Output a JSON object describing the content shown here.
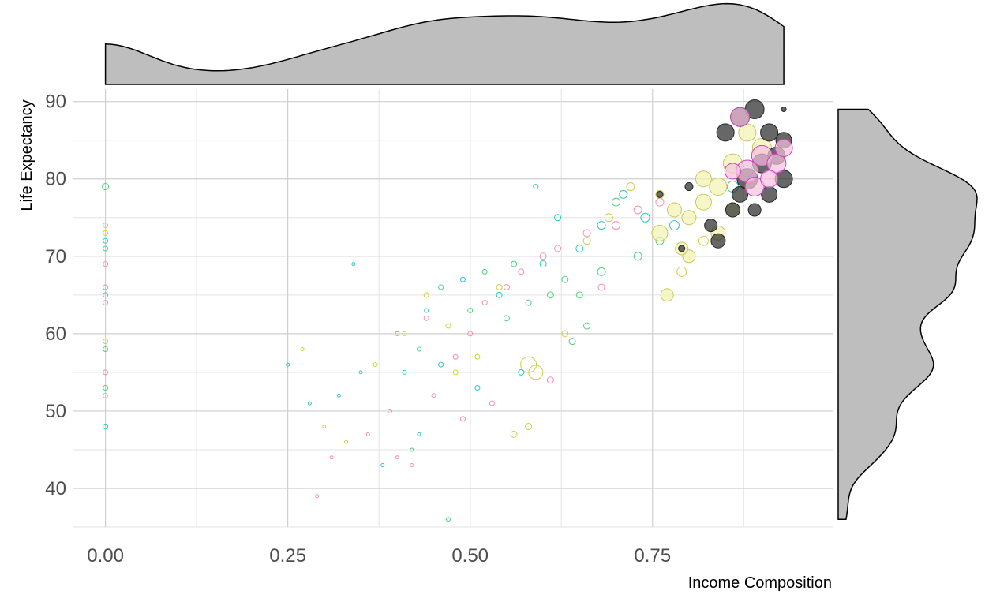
{
  "chart_data": {
    "type": "scatter",
    "xlabel": "Income Composition",
    "ylabel": "Life Expectancy",
    "xlim": [
      -0.045,
      0.997
    ],
    "ylim": [
      35,
      91.6
    ],
    "xticks": [
      {
        "value": 0,
        "label": "0.00"
      },
      0.25,
      {
        "value": 0.5,
        "label": "0.50"
      },
      0.75
    ],
    "yticks": [
      40,
      50,
      60,
      70,
      80,
      90
    ],
    "x_minor_grid": [
      0.125,
      0.375,
      0.625,
      0.875
    ],
    "y_minor_grid": [
      35,
      45,
      55,
      65,
      75,
      85
    ],
    "grid": true,
    "marginal": "density",
    "marginal_fill": "#bebebe",
    "series": [
      {
        "color": "#f48fb1",
        "fill": "none",
        "x": [
          0,
          0,
          0,
          0,
          0.29,
          0.31,
          0.36,
          0.4,
          0.42,
          0.45,
          0.48,
          0.5,
          0.52,
          0.55,
          0.57,
          0.6,
          0.62,
          0.66,
          0.7,
          0.73,
          0.76,
          0.49,
          0.53,
          0.61,
          0.68,
          0.44,
          0.39
        ],
        "values": [
          66,
          64,
          69,
          55,
          39,
          44,
          47,
          44,
          43,
          52,
          57,
          60,
          64,
          66,
          68,
          70,
          71,
          73,
          74,
          76,
          77,
          49,
          51,
          54,
          66,
          62,
          50
        ],
        "sizes": [
          3,
          3,
          3,
          3,
          2,
          2,
          2,
          2,
          2,
          2.5,
          3,
          3,
          3,
          3.5,
          3.5,
          4,
          4,
          4.5,
          5,
          5,
          5,
          3,
          3,
          4,
          4,
          3,
          2.5
        ]
      },
      {
        "color": "#cfd044",
        "fill": "none",
        "x": [
          0,
          0,
          0,
          0,
          0.27,
          0.3,
          0.33,
          0.37,
          0.41,
          0.44,
          0.47,
          0.51,
          0.54,
          0.56,
          0.58,
          0.59,
          0.63,
          0.66,
          0.69,
          0.72,
          0.76,
          0.79,
          0.82,
          0.58,
          0.48
        ],
        "values": [
          74,
          73,
          52,
          59,
          58,
          48,
          46,
          56,
          60,
          65,
          61,
          57,
          66,
          47,
          56,
          55,
          60,
          72,
          75,
          79,
          78,
          68,
          72,
          48,
          55
        ],
        "sizes": [
          3,
          3,
          3,
          3,
          2,
          2,
          2,
          2.5,
          2.5,
          3,
          3,
          3,
          3.5,
          4,
          10,
          9,
          4,
          4.5,
          5,
          5,
          5,
          6,
          6,
          4,
          3
        ]
      },
      {
        "color": "#4cd37a",
        "fill": "none",
        "x": [
          0,
          0,
          0,
          0,
          0.35,
          0.4,
          0.43,
          0.46,
          0.5,
          0.52,
          0.55,
          0.58,
          0.61,
          0.63,
          0.65,
          0.68,
          0.7,
          0.73,
          0.76,
          0.47,
          0.42,
          0.56,
          0.66,
          0.64,
          0.59
        ],
        "values": [
          79,
          71,
          53,
          58,
          55,
          60,
          58,
          66,
          63,
          68,
          62,
          64,
          65,
          67,
          65,
          68,
          77,
          70,
          72,
          36,
          45,
          69,
          61,
          59,
          79
        ],
        "sizes": [
          4,
          3,
          3,
          3,
          2,
          2.5,
          2.5,
          3,
          3,
          3,
          3.5,
          3.5,
          4,
          4,
          4,
          5,
          5,
          5,
          5,
          2.5,
          2,
          3.5,
          4,
          4,
          3
        ]
      },
      {
        "color": "#2ec6c8",
        "fill": "none",
        "x": [
          0,
          0,
          0,
          0.25,
          0.28,
          0.32,
          0.34,
          0.38,
          0.41,
          0.44,
          0.46,
          0.49,
          0.51,
          0.54,
          0.57,
          0.6,
          0.62,
          0.65,
          0.68,
          0.71,
          0.74,
          0.78,
          0.86,
          0.88,
          0.43
        ],
        "values": [
          72,
          48,
          65,
          56,
          51,
          52,
          69,
          43,
          55,
          63,
          56,
          67,
          53,
          65,
          55,
          69,
          75,
          71,
          74,
          78,
          75,
          74,
          79,
          81,
          47
        ],
        "sizes": [
          3,
          3,
          3,
          2,
          2,
          2,
          2,
          2,
          2.5,
          2.5,
          3,
          3,
          3,
          3.5,
          3.5,
          4,
          4,
          4.5,
          5,
          5,
          5.5,
          6,
          7,
          7,
          2
        ]
      },
      {
        "color": "#c8c860",
        "fill": "#f2f2b0",
        "x": [
          0.76,
          0.78,
          0.8,
          0.8,
          0.82,
          0.84,
          0.86,
          0.84,
          0.79,
          0.88,
          0.9,
          0.77,
          0.82,
          0.86
        ],
        "values": [
          73,
          76,
          75,
          70,
          77,
          79,
          82,
          73,
          71,
          86,
          84,
          65,
          80,
          76
        ],
        "sizes": [
          10,
          9,
          9,
          8,
          10,
          11,
          12,
          9,
          8,
          11,
          12,
          8,
          10,
          9
        ]
      },
      {
        "color": "#262626",
        "fill": "#262626",
        "x": [
          0.85,
          0.87,
          0.89,
          0.91,
          0.93,
          0.88,
          0.9,
          0.92,
          0.87,
          0.91,
          0.93,
          0.83,
          0.84,
          0.86,
          0.8,
          0.76,
          0.79,
          0.89,
          0.93
        ],
        "values": [
          86,
          88,
          89,
          86,
          85,
          80,
          82,
          83,
          78,
          78,
          80,
          74,
          72,
          76,
          79,
          78,
          71,
          76,
          89
        ],
        "sizes": [
          11,
          12,
          12,
          11,
          10,
          13,
          12,
          11,
          10,
          10,
          11,
          8,
          9,
          9,
          5,
          4,
          4,
          8,
          3
        ]
      },
      {
        "color": "#cc44bb",
        "fill": "#f8c0e0",
        "x": [
          0.88,
          0.9,
          0.92,
          0.93,
          0.89,
          0.86,
          0.91,
          0.87
        ],
        "values": [
          81,
          83,
          82,
          84,
          79,
          81,
          80,
          88
        ],
        "sizes": [
          14,
          13,
          12,
          11,
          12,
          10,
          11,
          12
        ]
      }
    ]
  }
}
